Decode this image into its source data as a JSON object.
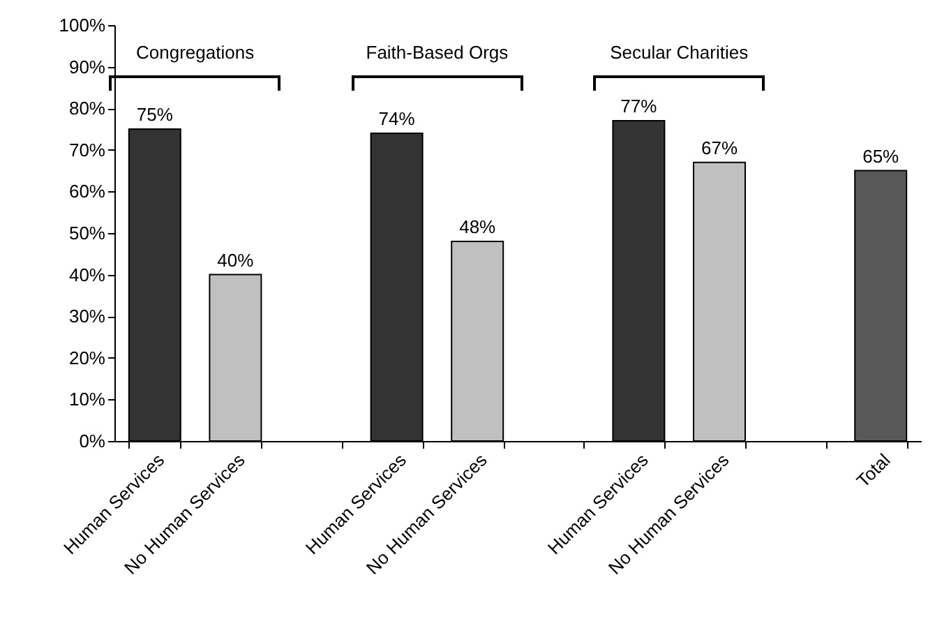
{
  "chart_data": {
    "type": "bar",
    "categories": [
      "Human Services",
      "No Human Services",
      null,
      "Human Services",
      "No Human Services",
      null,
      "Human Services",
      "No Human Services",
      null,
      "Total"
    ],
    "values": [
      75,
      40,
      null,
      74,
      48,
      null,
      77,
      67,
      null,
      65
    ],
    "colors": [
      "#333333",
      "#c0c0c0",
      null,
      "#333333",
      "#c0c0c0",
      null,
      "#333333",
      "#c0c0c0",
      null,
      "#595959"
    ],
    "value_labels": [
      "75%",
      "40%",
      null,
      "74%",
      "48%",
      null,
      "77%",
      "67%",
      null,
      "65%"
    ],
    "ylim": [
      0,
      100
    ],
    "yticks": [
      {
        "value": 0,
        "label": "0%"
      },
      {
        "value": 10,
        "label": "10%"
      },
      {
        "value": 20,
        "label": "20%"
      },
      {
        "value": 30,
        "label": "30%"
      },
      {
        "value": 40,
        "label": "40%"
      },
      {
        "value": 50,
        "label": "50%"
      },
      {
        "value": 60,
        "label": "60%"
      },
      {
        "value": 70,
        "label": "70%"
      },
      {
        "value": 80,
        "label": "80%"
      },
      {
        "value": 90,
        "label": "90%"
      },
      {
        "value": 100,
        "label": "100%"
      }
    ],
    "grid": false,
    "annotations": [
      "Congregations",
      "Faith-Based Orgs",
      "Secular Charities"
    ]
  }
}
